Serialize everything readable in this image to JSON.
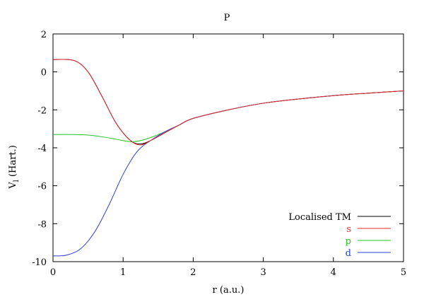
{
  "chart_data": {
    "type": "line",
    "title": "P",
    "xlabel": "r (a.u.)",
    "ylabel_main": "V",
    "ylabel_sub": "l",
    "ylabel_rest": " (Hart.)",
    "xlim": [
      0,
      5
    ],
    "ylim": [
      -10,
      2
    ],
    "xticks": [
      0,
      1,
      2,
      3,
      4,
      5
    ],
    "yticks": [
      -10,
      -8,
      -6,
      -4,
      -2,
      0,
      2
    ],
    "grid": false,
    "legend_position": "bottom-right",
    "series": [
      {
        "name": "Localised TM",
        "color": "#000000",
        "x": [
          0,
          0.3,
          0.5,
          0.7,
          0.9,
          1.1,
          1.25,
          1.4,
          1.6,
          1.8,
          2.0,
          2.5,
          3.0,
          3.5,
          4.0,
          4.5,
          5.0
        ],
        "y": [
          0.65,
          0.6,
          0.0,
          -1.3,
          -2.7,
          -3.6,
          -3.8,
          -3.6,
          -3.2,
          -2.8,
          -2.45,
          -2.0,
          -1.65,
          -1.43,
          -1.25,
          -1.12,
          -1.0
        ]
      },
      {
        "name": "s",
        "color": "#e8262b",
        "x": [
          0,
          0.3,
          0.5,
          0.7,
          0.9,
          1.1,
          1.25,
          1.4,
          1.6,
          1.8,
          2.0,
          2.5,
          3.0,
          3.5,
          4.0,
          4.5,
          5.0
        ],
        "y": [
          0.65,
          0.6,
          0.0,
          -1.3,
          -2.7,
          -3.6,
          -3.85,
          -3.6,
          -3.2,
          -2.8,
          -2.45,
          -2.0,
          -1.65,
          -1.43,
          -1.25,
          -1.12,
          -1.0
        ]
      },
      {
        "name": "p",
        "color": "#21c321",
        "x": [
          0,
          0.3,
          0.5,
          0.7,
          0.9,
          1.1,
          1.25,
          1.4,
          1.6,
          1.8,
          2.0,
          2.5,
          3.0,
          3.5,
          4.0,
          4.5,
          5.0
        ],
        "y": [
          -3.3,
          -3.3,
          -3.33,
          -3.42,
          -3.55,
          -3.68,
          -3.62,
          -3.45,
          -3.15,
          -2.8,
          -2.45,
          -2.0,
          -1.65,
          -1.43,
          -1.25,
          -1.12,
          -1.0
        ]
      },
      {
        "name": "d",
        "color": "#2d3fd8",
        "x": [
          0,
          0.2,
          0.4,
          0.6,
          0.8,
          1.0,
          1.2,
          1.4,
          1.6,
          1.8,
          2.0,
          2.5,
          3.0,
          3.5,
          4.0,
          4.5,
          5.0
        ],
        "y": [
          -9.7,
          -9.65,
          -9.3,
          -8.4,
          -7.0,
          -5.4,
          -4.2,
          -3.6,
          -3.15,
          -2.8,
          -2.45,
          -2.0,
          -1.65,
          -1.43,
          -1.25,
          -1.12,
          -1.0
        ]
      }
    ]
  }
}
